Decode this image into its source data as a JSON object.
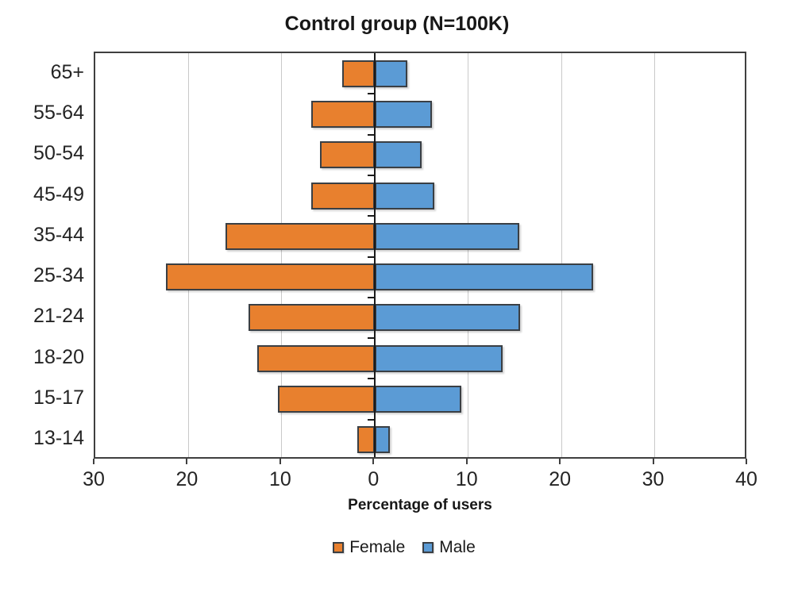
{
  "title": "Control group (N=100K)",
  "x_axis_title": "Percentage of users",
  "colors": {
    "female": "#E8802E",
    "male": "#5B9BD5",
    "bar_border": "#3A3F44",
    "gridline": "#C9C9C9",
    "zero_axis": "#1A1A1A",
    "plot_border": "#3F3F3F",
    "text": "#242424"
  },
  "chart_data": {
    "type": "bar",
    "orientation": "horizontal-pyramid",
    "title": "Control group (N=100K)",
    "xlabel": "Percentage of users",
    "ylabel": "",
    "categories": [
      "65+",
      "55-64",
      "50-54",
      "45-49",
      "35-44",
      "25-34",
      "21-24",
      "18-20",
      "15-17",
      "13-14"
    ],
    "series": [
      {
        "name": "Female",
        "side": "left",
        "color_key": "female",
        "values": [
          3.5,
          6.8,
          5.9,
          6.8,
          16.0,
          22.4,
          13.6,
          12.6,
          10.4,
          1.9
        ]
      },
      {
        "name": "Male",
        "side": "right",
        "color_key": "male",
        "values": [
          3.5,
          6.1,
          5.0,
          6.4,
          15.5,
          23.4,
          15.6,
          13.7,
          9.3,
          1.6
        ]
      }
    ],
    "x_axis": {
      "min": -30,
      "max": 40,
      "tick_values": [
        -30,
        -20,
        -10,
        0,
        10,
        20,
        30,
        40
      ],
      "tick_labels": [
        "30",
        "20",
        "10",
        "0",
        "10",
        "20",
        "30",
        "40"
      ]
    },
    "grid": "vertical",
    "legend": {
      "position": "bottom",
      "entries": [
        {
          "label": "Female",
          "color_key": "female"
        },
        {
          "label": "Male",
          "color_key": "male"
        }
      ]
    }
  }
}
